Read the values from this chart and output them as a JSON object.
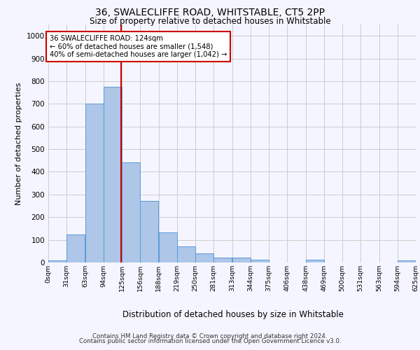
{
  "title1": "36, SWALECLIFFE ROAD, WHITSTABLE, CT5 2PP",
  "title2": "Size of property relative to detached houses in Whitstable",
  "xlabel": "Distribution of detached houses by size in Whitstable",
  "ylabel": "Number of detached properties",
  "footer1": "Contains HM Land Registry data © Crown copyright and database right 2024.",
  "footer2": "Contains public sector information licensed under the Open Government Licence v3.0.",
  "bin_labels": [
    "0sqm",
    "31sqm",
    "63sqm",
    "94sqm",
    "125sqm",
    "156sqm",
    "188sqm",
    "219sqm",
    "250sqm",
    "281sqm",
    "313sqm",
    "344sqm",
    "375sqm",
    "406sqm",
    "438sqm",
    "469sqm",
    "500sqm",
    "531sqm",
    "563sqm",
    "594sqm",
    "625sqm"
  ],
  "bin_edges": [
    0,
    31,
    63,
    94,
    125,
    156,
    188,
    219,
    250,
    281,
    313,
    344,
    375,
    406,
    438,
    469,
    500,
    531,
    563,
    594,
    625
  ],
  "bar_values": [
    8,
    125,
    700,
    775,
    443,
    273,
    132,
    70,
    40,
    23,
    22,
    13,
    0,
    0,
    13,
    0,
    0,
    0,
    0,
    8
  ],
  "bar_color": "#aec6e8",
  "bar_edge_color": "#5a9ad5",
  "vline_x": 124,
  "vline_color": "#cc0000",
  "ylim": [
    0,
    1050
  ],
  "yticks": [
    0,
    100,
    200,
    300,
    400,
    500,
    600,
    700,
    800,
    900,
    1000
  ],
  "annotation_text": "36 SWALECLIFFE ROAD: 124sqm\n← 60% of detached houses are smaller (1,548)\n40% of semi-detached houses are larger (1,042) →",
  "annotation_box_color": "#ffffff",
  "annotation_box_edge": "#cc0000",
  "grid_color": "#cccccc",
  "bg_color": "#f5f5ff"
}
